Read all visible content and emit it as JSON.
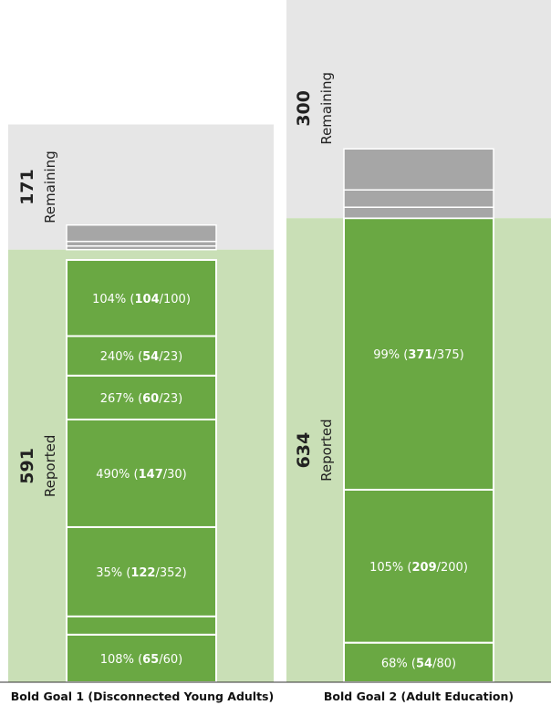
{
  "chart_data": {
    "type": "bar",
    "stacked": true,
    "categories": [
      "Bold Goal 1 (Disconnected Young Adults)",
      "Bold Goal 2 (Adult Education)"
    ],
    "band_labels": {
      "remaining": "Remaining",
      "reported": "Reported"
    },
    "goals": [
      {
        "name": "Bold Goal 1 (Disconnected Young Adults)",
        "reported": 591,
        "remaining": 171,
        "segments": [
          {
            "pct": "108%",
            "actual": "65",
            "target": "60",
            "label_visible": true
          },
          {
            "pct": "",
            "actual": "",
            "target": "",
            "label_visible": false
          },
          {
            "pct": "35%",
            "actual": "122",
            "target": "352",
            "label_visible": true
          },
          {
            "pct": "490%",
            "actual": "147",
            "target": "30",
            "label_visible": true
          },
          {
            "pct": "267%",
            "actual": "60",
            "target": "23",
            "label_visible": true
          },
          {
            "pct": "240%",
            "actual": "54",
            "target": "23",
            "label_visible": true
          },
          {
            "pct": "104%",
            "actual": "104",
            "target": "100",
            "label_visible": true
          }
        ],
        "gray_segment_count": 3
      },
      {
        "name": "Bold Goal 2 (Adult Education)",
        "reported": 634,
        "remaining": 300,
        "segments": [
          {
            "pct": "68%",
            "actual": "54",
            "target": "80",
            "label_visible": true
          },
          {
            "pct": "105%",
            "actual": "209",
            "target": "200",
            "label_visible": true
          },
          {
            "pct": "99%",
            "actual": "371",
            "target": "375",
            "label_visible": true
          }
        ],
        "gray_segment_count": 3
      }
    ],
    "colors": {
      "reported_bar": "#6aa843",
      "reported_band": "#c9dfb6",
      "remaining_bar": "#a6a6a6",
      "remaining_band": "#e6e6e6"
    }
  }
}
